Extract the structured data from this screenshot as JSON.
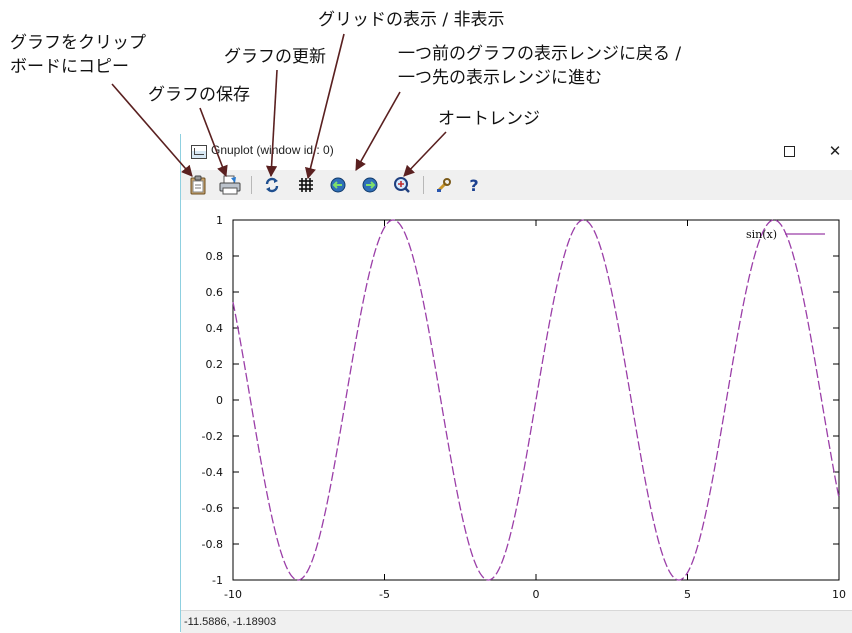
{
  "annotations": {
    "copy": "グラフをクリップ\nボードにコピー",
    "save": "グラフの保存",
    "replot": "グラフの更新",
    "grid": "グリッドの表示 / 非表示",
    "prev_next": "一つ前のグラフの表示レンジに戻る /\n一つ先の表示レンジに進む",
    "autoscale": "オートレンジ"
  },
  "window": {
    "title": "Gnuplot (window id : 0)",
    "maximize_icon": "maximize-icon",
    "close_label": "✕"
  },
  "toolbar": {
    "icons": [
      "clipboard-icon",
      "print-icon",
      "replot-icon",
      "grid-icon",
      "prev-zoom-icon",
      "next-zoom-icon",
      "autoscale-icon",
      "wrench-icon",
      "help-icon"
    ],
    "help_label": "?"
  },
  "statusbar": {
    "coordinates": "-11.5886, -1.18903"
  },
  "colors": {
    "curve": "#9b3fa8",
    "toolbar_bg": "#f0f0f0",
    "window_border": "#8fd0e0"
  },
  "chart_data": {
    "type": "line",
    "function": "sin(x)",
    "series": [
      {
        "name": "sin(x)",
        "x_range": [
          -10,
          10
        ],
        "sampled": true
      }
    ],
    "xlim": [
      -10,
      10
    ],
    "ylim": [
      -1,
      1
    ],
    "x_ticks": [
      "-10",
      "-5",
      "0",
      "5",
      "10"
    ],
    "y_ticks": [
      "1",
      "0.8",
      "0.6",
      "0.4",
      "0.2",
      "0",
      "-0.2",
      "-0.4",
      "-0.6",
      "-0.8",
      "-1"
    ],
    "legend": {
      "label": "sin(x)",
      "placement": "top-right"
    },
    "grid": false
  }
}
